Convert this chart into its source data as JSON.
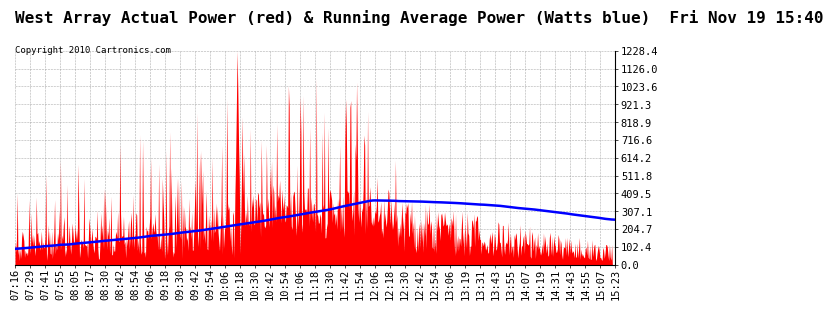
{
  "title": "West Array Actual Power (red) & Running Average Power (Watts blue)  Fri Nov 19 15:40",
  "copyright": "Copyright 2010 Cartronics.com",
  "ylabel_right": [
    "0.0",
    "102.4",
    "204.7",
    "307.1",
    "409.5",
    "511.8",
    "614.2",
    "716.6",
    "818.9",
    "921.3",
    "1023.6",
    "1126.0",
    "1228.4"
  ],
  "ymax": 1228.4,
  "ymin": 0.0,
  "background_color": "#ffffff",
  "plot_bg_color": "#ffffff",
  "grid_color": "#999999",
  "bar_color": "#ff0000",
  "line_color": "#0000ff",
  "title_fontsize": 11.5,
  "tick_fontsize": 7.5,
  "time_labels": [
    "07:16",
    "07:29",
    "07:41",
    "07:55",
    "08:05",
    "08:17",
    "08:30",
    "08:42",
    "08:54",
    "09:06",
    "09:18",
    "09:30",
    "09:42",
    "09:54",
    "10:06",
    "10:18",
    "10:30",
    "10:42",
    "10:54",
    "11:06",
    "11:18",
    "11:30",
    "11:42",
    "11:54",
    "12:06",
    "12:18",
    "12:30",
    "12:42",
    "12:54",
    "13:06",
    "13:19",
    "13:31",
    "13:43",
    "13:55",
    "14:07",
    "14:19",
    "14:31",
    "14:43",
    "14:55",
    "15:07",
    "15:23"
  ]
}
